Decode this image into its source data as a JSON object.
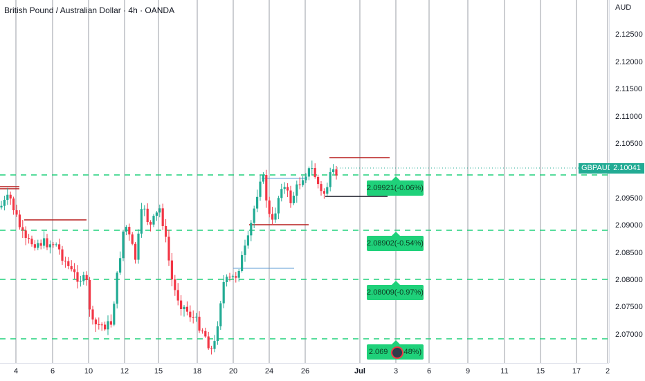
{
  "header": {
    "title": "British Pound / Australian Dollar · 4h · OANDA"
  },
  "price_axis": {
    "currency": "AUD",
    "labels": [
      "2.12500",
      "2.12000",
      "2.11500",
      "2.11000",
      "2.10500",
      "2.09500",
      "2.09000",
      "2.08500",
      "2.08000",
      "2.07500",
      "2.07000"
    ]
  },
  "time_axis": {
    "labels": [
      "4",
      "6",
      "10",
      "12",
      "15",
      "18",
      "20",
      "24",
      "26",
      "Jul",
      "3",
      "6",
      "9",
      "11",
      "15",
      "17",
      "2"
    ]
  },
  "last_price": {
    "symbol": "GBPAUD",
    "value": "2.10041",
    "color": "#22ab94"
  },
  "targets": [
    {
      "label": "2.09921(-0.06%)"
    },
    {
      "label": "2.08902(-0.54%)"
    },
    {
      "label": "2.08009(-0.97%)"
    },
    {
      "label": "2.069",
      "suffix": ".48%)"
    }
  ],
  "colors": {
    "up": "#22ab94",
    "down": "#f23645",
    "level": "#1fd17a",
    "resistance": "#b71c1c"
  }
}
